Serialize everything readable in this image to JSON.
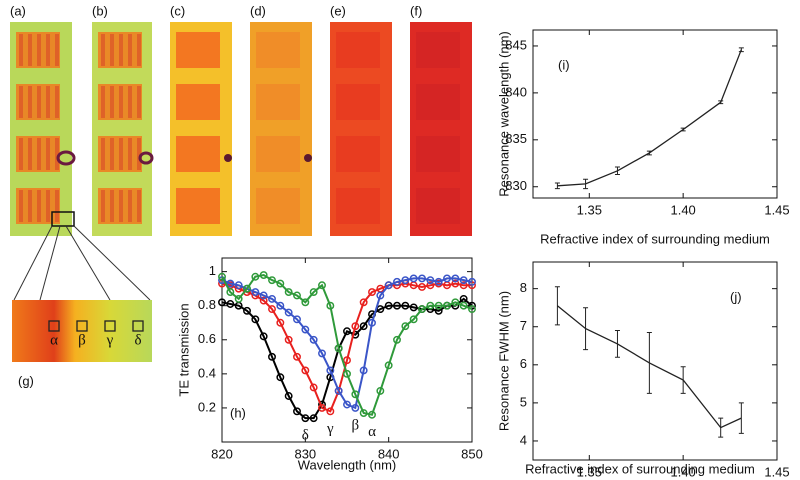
{
  "panel_labels": [
    "(a)",
    "(b)",
    "(c)",
    "(d)",
    "(e)",
    "(f)",
    "(g)"
  ],
  "zoom_labels": [
    "α",
    "β",
    "γ",
    "δ"
  ],
  "chart_data": [
    {
      "type": "line",
      "panel_label": "(h)",
      "xlabel": "Wavelength (nm)",
      "ylabel": "TE transmission",
      "x": [
        820,
        821,
        822,
        823,
        824,
        825,
        826,
        827,
        828,
        829,
        830,
        831,
        832,
        833,
        834,
        835,
        836,
        837,
        838,
        839,
        840,
        841,
        842,
        843,
        844,
        845,
        846,
        847,
        848,
        849,
        850
      ],
      "xlim": [
        820,
        850
      ],
      "xticks": [
        820,
        830,
        840,
        850
      ],
      "ylim": [
        0,
        1.08
      ],
      "yticks": [
        0.2,
        0.4,
        0.6,
        0.8,
        1
      ],
      "markers": true,
      "series": [
        {
          "color": "#000000",
          "values": [
            0.82,
            0.81,
            0.8,
            0.77,
            0.72,
            0.62,
            0.5,
            0.38,
            0.27,
            0.18,
            0.14,
            0.14,
            0.22,
            0.38,
            0.55,
            0.65,
            0.63,
            0.68,
            0.75,
            0.78,
            0.8,
            0.8,
            0.8,
            0.79,
            0.78,
            0.78,
            0.77,
            0.8,
            0.8,
            0.84,
            0.8
          ]
        },
        {
          "color": "#e8201e",
          "values": [
            0.93,
            0.92,
            0.9,
            0.88,
            0.86,
            0.83,
            0.78,
            0.7,
            0.6,
            0.5,
            0.42,
            0.32,
            0.2,
            0.18,
            0.3,
            0.48,
            0.68,
            0.82,
            0.88,
            0.9,
            0.92,
            0.92,
            0.93,
            0.92,
            0.91,
            0.92,
            0.93,
            0.92,
            0.93,
            0.92,
            0.92
          ]
        },
        {
          "color": "#3a55c8",
          "values": [
            0.95,
            0.93,
            0.92,
            0.9,
            0.88,
            0.86,
            0.84,
            0.8,
            0.76,
            0.72,
            0.66,
            0.6,
            0.52,
            0.42,
            0.3,
            0.22,
            0.2,
            0.42,
            0.7,
            0.86,
            0.92,
            0.94,
            0.95,
            0.96,
            0.96,
            0.95,
            0.94,
            0.96,
            0.96,
            0.95,
            0.94
          ]
        },
        {
          "color": "#2f9a3a",
          "values": [
            0.97,
            0.88,
            0.84,
            0.9,
            0.97,
            0.98,
            0.95,
            0.93,
            0.88,
            0.86,
            0.82,
            0.88,
            0.92,
            0.8,
            0.55,
            0.4,
            0.28,
            0.17,
            0.16,
            0.3,
            0.45,
            0.6,
            0.68,
            0.72,
            0.78,
            0.8,
            0.8,
            0.8,
            0.82,
            0.8,
            0.78
          ]
        }
      ],
      "annotations": [
        "δ",
        "γ",
        "β",
        "α"
      ]
    },
    {
      "type": "line",
      "panel_label": "(i)",
      "xlabel": "Refractive index of surrounding medium",
      "ylabel": "Resonance wavelength (nm)",
      "x": [
        1.333,
        1.348,
        1.365,
        1.382,
        1.4,
        1.42,
        1.431
      ],
      "xlim": [
        1.32,
        1.45
      ],
      "xticks": [
        1.35,
        {
          "value": 1.4,
          "label": "1.40"
        },
        1.45
      ],
      "ylim": [
        828.8,
        846.7
      ],
      "yticks": [
        830,
        835,
        840,
        845
      ],
      "markers": false,
      "series": [
        {
          "color": "#222222",
          "values": [
            830.1,
            830.3,
            831.7,
            833.6,
            836.1,
            839.0,
            844.6
          ],
          "errors": [
            0.3,
            0.5,
            0.4,
            0.2,
            0.15,
            0.15,
            0.2
          ]
        }
      ]
    },
    {
      "type": "line",
      "panel_label": "(j)",
      "xlabel": "Refractive index of surrounding medium",
      "ylabel": "Resonance FWHM (nm)",
      "x": [
        1.333,
        1.348,
        1.365,
        1.382,
        1.4,
        1.42,
        1.431
      ],
      "xlim": [
        1.32,
        1.45
      ],
      "xticks": [
        1.35,
        {
          "value": 1.4,
          "label": "1.40"
        },
        1.45
      ],
      "ylim": [
        3.5,
        8.7
      ],
      "yticks": [
        4,
        5,
        6,
        7,
        8
      ],
      "markers": false,
      "series": [
        {
          "color": "#222222",
          "values": [
            7.55,
            6.95,
            6.55,
            6.05,
            5.6,
            4.35,
            4.6
          ],
          "errors": [
            0.5,
            0.55,
            0.35,
            0.8,
            0.35,
            0.25,
            0.4
          ]
        }
      ]
    }
  ]
}
